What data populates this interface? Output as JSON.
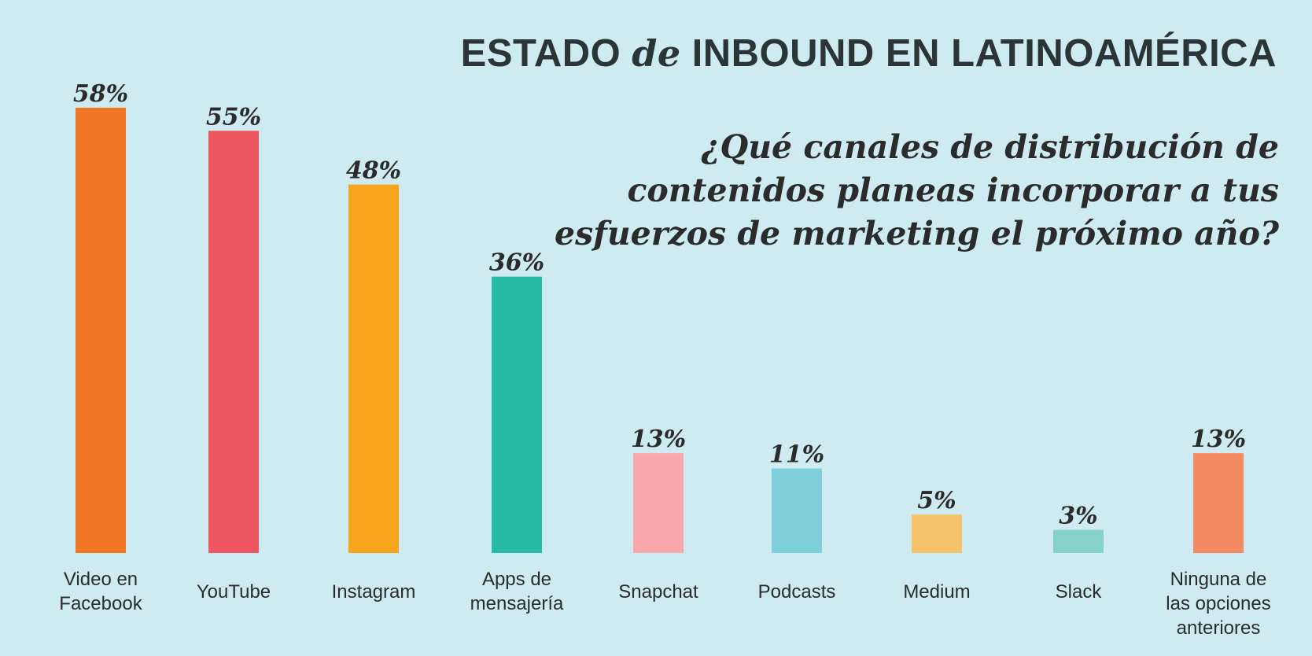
{
  "header": {
    "title_part1": "ESTADO",
    "title_part2": "de",
    "title_part3": "INBOUND EN LATINOAMÉRICA"
  },
  "question": "¿Qué canales de distribución de contenidos planeas incorporar a tus esfuerzos de marketing el próximo año?",
  "chart_data": {
    "type": "bar",
    "categories": [
      [
        "Video en",
        "Facebook"
      ],
      [
        "YouTube"
      ],
      [
        "Instagram"
      ],
      [
        "Apps de",
        "mensajería"
      ],
      [
        "Snapchat"
      ],
      [
        "Podcasts"
      ],
      [
        "Medium"
      ],
      [
        "Slack"
      ],
      [
        "Ninguna de",
        "las opciones",
        "anteriores"
      ]
    ],
    "values": [
      58,
      55,
      48,
      36,
      13,
      11,
      5,
      3,
      13
    ],
    "value_labels": [
      "58%",
      "55%",
      "48%",
      "36%",
      "13%",
      "11%",
      "5%",
      "3%",
      "13%"
    ],
    "colors": [
      "#f07623",
      "#ee5760",
      "#f7a51c",
      "#27bba5",
      "#f8a7aa",
      "#80d0db",
      "#f5c36b",
      "#86d1c8",
      "#f48b62"
    ],
    "ylim": [
      0,
      58
    ],
    "grid": false,
    "legend": "none"
  }
}
